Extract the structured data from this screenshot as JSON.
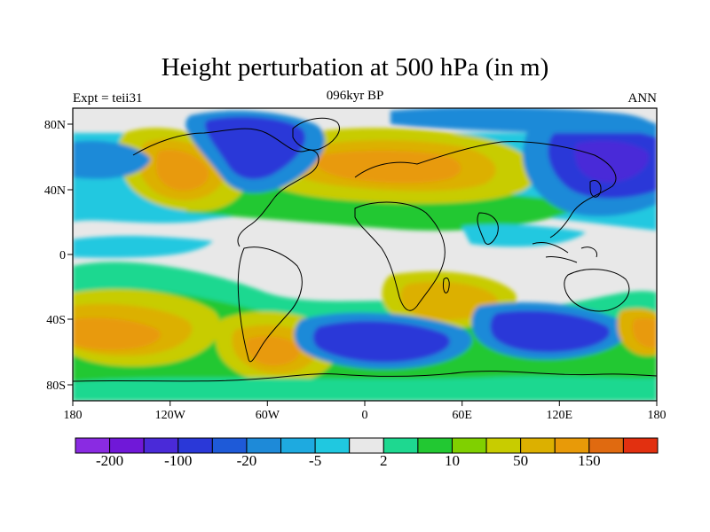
{
  "title": "Height perturbation at 500 hPa (in m)",
  "left_label": "Expt = teii31",
  "center_label": "096kyr BP",
  "right_label": "ANN",
  "map": {
    "projection": "cylindrical equidistant",
    "lon_range": [
      -180,
      180
    ],
    "lat_range": [
      -90,
      90
    ],
    "lon_ticks": [
      "180",
      "120W",
      "60W",
      "0",
      "60E",
      "120E",
      "180"
    ],
    "lat_ticks": [
      "80N",
      "40N",
      "0",
      "40S",
      "80S"
    ]
  },
  "colorbar": {
    "colors": [
      "#8a2be2",
      "#7018d8",
      "#4a2ad8",
      "#2a38d8",
      "#1e5ad8",
      "#1e8ad8",
      "#1eaae0",
      "#20c8e0",
      "#e8e8e8",
      "#1ed890",
      "#22c832",
      "#80d000",
      "#c8cc00",
      "#dcb000",
      "#e89a08",
      "#e06a10",
      "#e23010"
    ],
    "labels": [
      "-200",
      "-100",
      "-20",
      "-5",
      "2",
      "10",
      "50",
      "150"
    ]
  }
}
